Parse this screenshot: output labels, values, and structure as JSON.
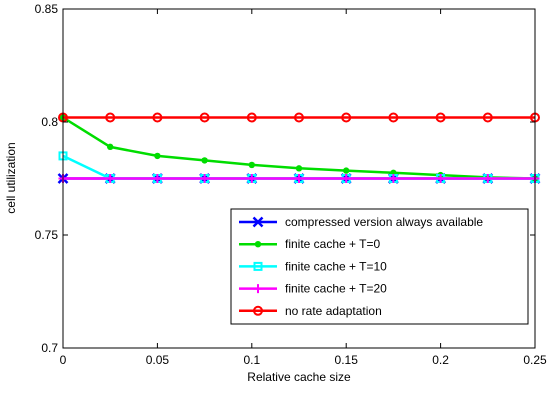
{
  "chart_data": {
    "type": "line",
    "xlabel": "Relative cache size",
    "ylabel": "cell utilization",
    "xlim": [
      0,
      0.25
    ],
    "ylim": [
      0.7,
      0.85
    ],
    "xticks": [
      0,
      0.05,
      0.1,
      0.15,
      0.2,
      0.25
    ],
    "xtick_labels": [
      "0",
      "0.05",
      "0.1",
      "0.15",
      "0.2",
      "0.25"
    ],
    "yticks": [
      0.7,
      0.75,
      0.8,
      0.85
    ],
    "ytick_labels": [
      "0.7",
      "0.75",
      "0.8",
      "0.85"
    ],
    "x": [
      0,
      0.025,
      0.05,
      0.075,
      0.1,
      0.125,
      0.15,
      0.175,
      0.2,
      0.225,
      0.25
    ],
    "grid": false,
    "legend_position": "bottom-right",
    "series": [
      {
        "name": "compressed version always available",
        "color": "#0000ff",
        "marker": "x",
        "values": [
          0.775,
          0.775,
          0.775,
          0.775,
          0.775,
          0.775,
          0.775,
          0.775,
          0.775,
          0.775,
          0.775
        ]
      },
      {
        "name": "finite cache + T=0",
        "color": "#00dd00",
        "marker": "dot",
        "values": [
          0.802,
          0.789,
          0.785,
          0.783,
          0.781,
          0.7795,
          0.7785,
          0.7775,
          0.7765,
          0.7755,
          0.775
        ]
      },
      {
        "name": "finite cache + T=10",
        "color": "#00ffff",
        "marker": "square",
        "values": [
          0.785,
          0.775,
          0.775,
          0.775,
          0.775,
          0.775,
          0.775,
          0.775,
          0.775,
          0.775,
          0.775
        ]
      },
      {
        "name": "finite cache + T=20",
        "color": "#ff00ff",
        "marker": "plus",
        "values": [
          0.775,
          0.775,
          0.775,
          0.775,
          0.775,
          0.775,
          0.775,
          0.775,
          0.775,
          0.775,
          0.775
        ]
      },
      {
        "name": "no rate adaptation",
        "color": "#ff0000",
        "marker": "circle",
        "values": [
          0.802,
          0.802,
          0.802,
          0.802,
          0.802,
          0.802,
          0.802,
          0.802,
          0.802,
          0.802,
          0.802
        ]
      }
    ]
  }
}
